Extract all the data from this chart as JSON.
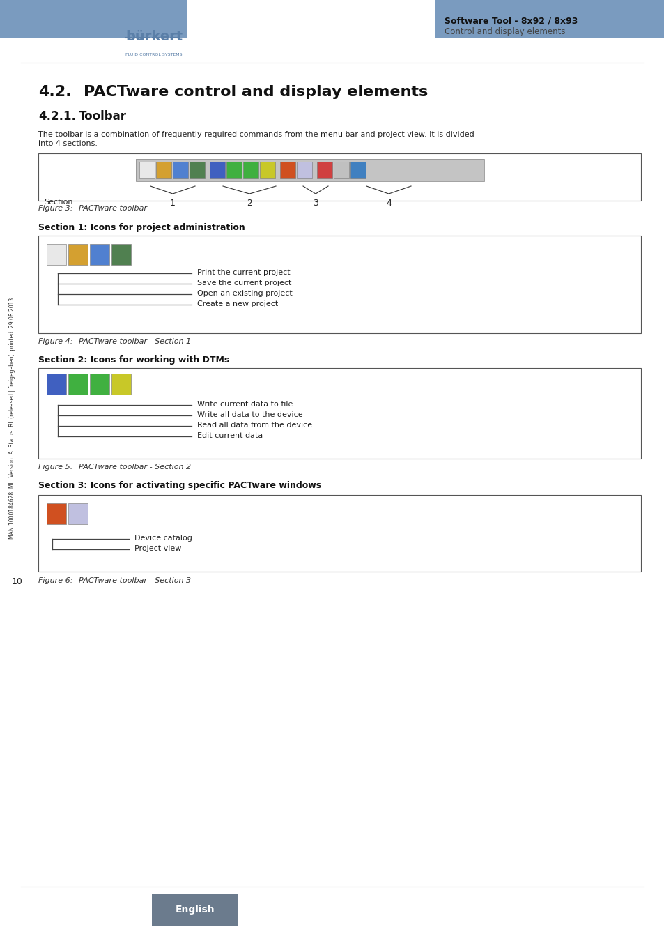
{
  "bg_color": "#ffffff",
  "header_blue": "#7a9bbf",
  "header_text_color": "#ffffff",
  "sidebar_color": "#6b7b8d",
  "burkert_blue": "#5a7fa8",
  "title_main": "4.2.",
  "title_main_text": "PACTware control and display elements",
  "title_sub": "4.2.1.",
  "title_sub_text": "Toolbar",
  "body_text_line1": "The toolbar is a combination of frequently required commands from the menu bar and project view. It is divided",
  "body_text_line2": "into 4 sections.",
  "fig3_caption": "Figure 3:",
  "fig3_caption_text": "PACTware toolbar",
  "fig4_caption": "Figure 4:",
  "fig4_caption_text": "PACTware toolbar - Section 1",
  "fig5_caption": "Figure 5:",
  "fig5_caption_text": "PACTware toolbar - Section 2",
  "fig6_caption": "Figure 6:",
  "fig6_caption_text": "PACTware toolbar - Section 3",
  "section1_heading": "Section 1: Icons for project administration",
  "section2_heading": "Section 2: Icons for working with DTMs",
  "section3_heading": "Section 3: Icons for activating specific PACTware windows",
  "section1_items": [
    "Print the current project",
    "Save the current project",
    "Open an existing project",
    "Create a new project"
  ],
  "section2_items": [
    "Write current data to file",
    "Write all data to the device",
    "Read all data from the device",
    "Edit current data"
  ],
  "section3_items": [
    "Device catalog",
    "Project view"
  ],
  "sidebar_text": "MAN 1000184628  ML  Version: A  Status: RL (released | freigegeben)  printed: 29.08.2013",
  "page_number": "10",
  "footer_text": "English",
  "software_tool_label": "Software Tool - 8x92 / 8x93",
  "control_label": "Control and display elements",
  "toolbar_icon_colors_sec1": [
    "#e8e8e8",
    "#d4a030",
    "#5080d0",
    "#508050"
  ],
  "toolbar_icon_colors_sec2": [
    "#4060c0",
    "#40b040",
    "#40b040",
    "#c8c828"
  ],
  "toolbar_icon_colors_sec3": [
    "#d05020",
    "#c0c0e0"
  ],
  "toolbar_icon_colors_sec4": [
    "#d04040",
    "#c0c0c0",
    "#4080c0"
  ],
  "fig4_icon_colors": [
    "#e8e8e8",
    "#d4a030",
    "#5080d0",
    "#508050"
  ],
  "fig5_icon_colors": [
    "#4060c0",
    "#40b040",
    "#40b040",
    "#c8c828"
  ],
  "fig6_icon_colors": [
    "#d05020",
    "#c0c0e0"
  ]
}
